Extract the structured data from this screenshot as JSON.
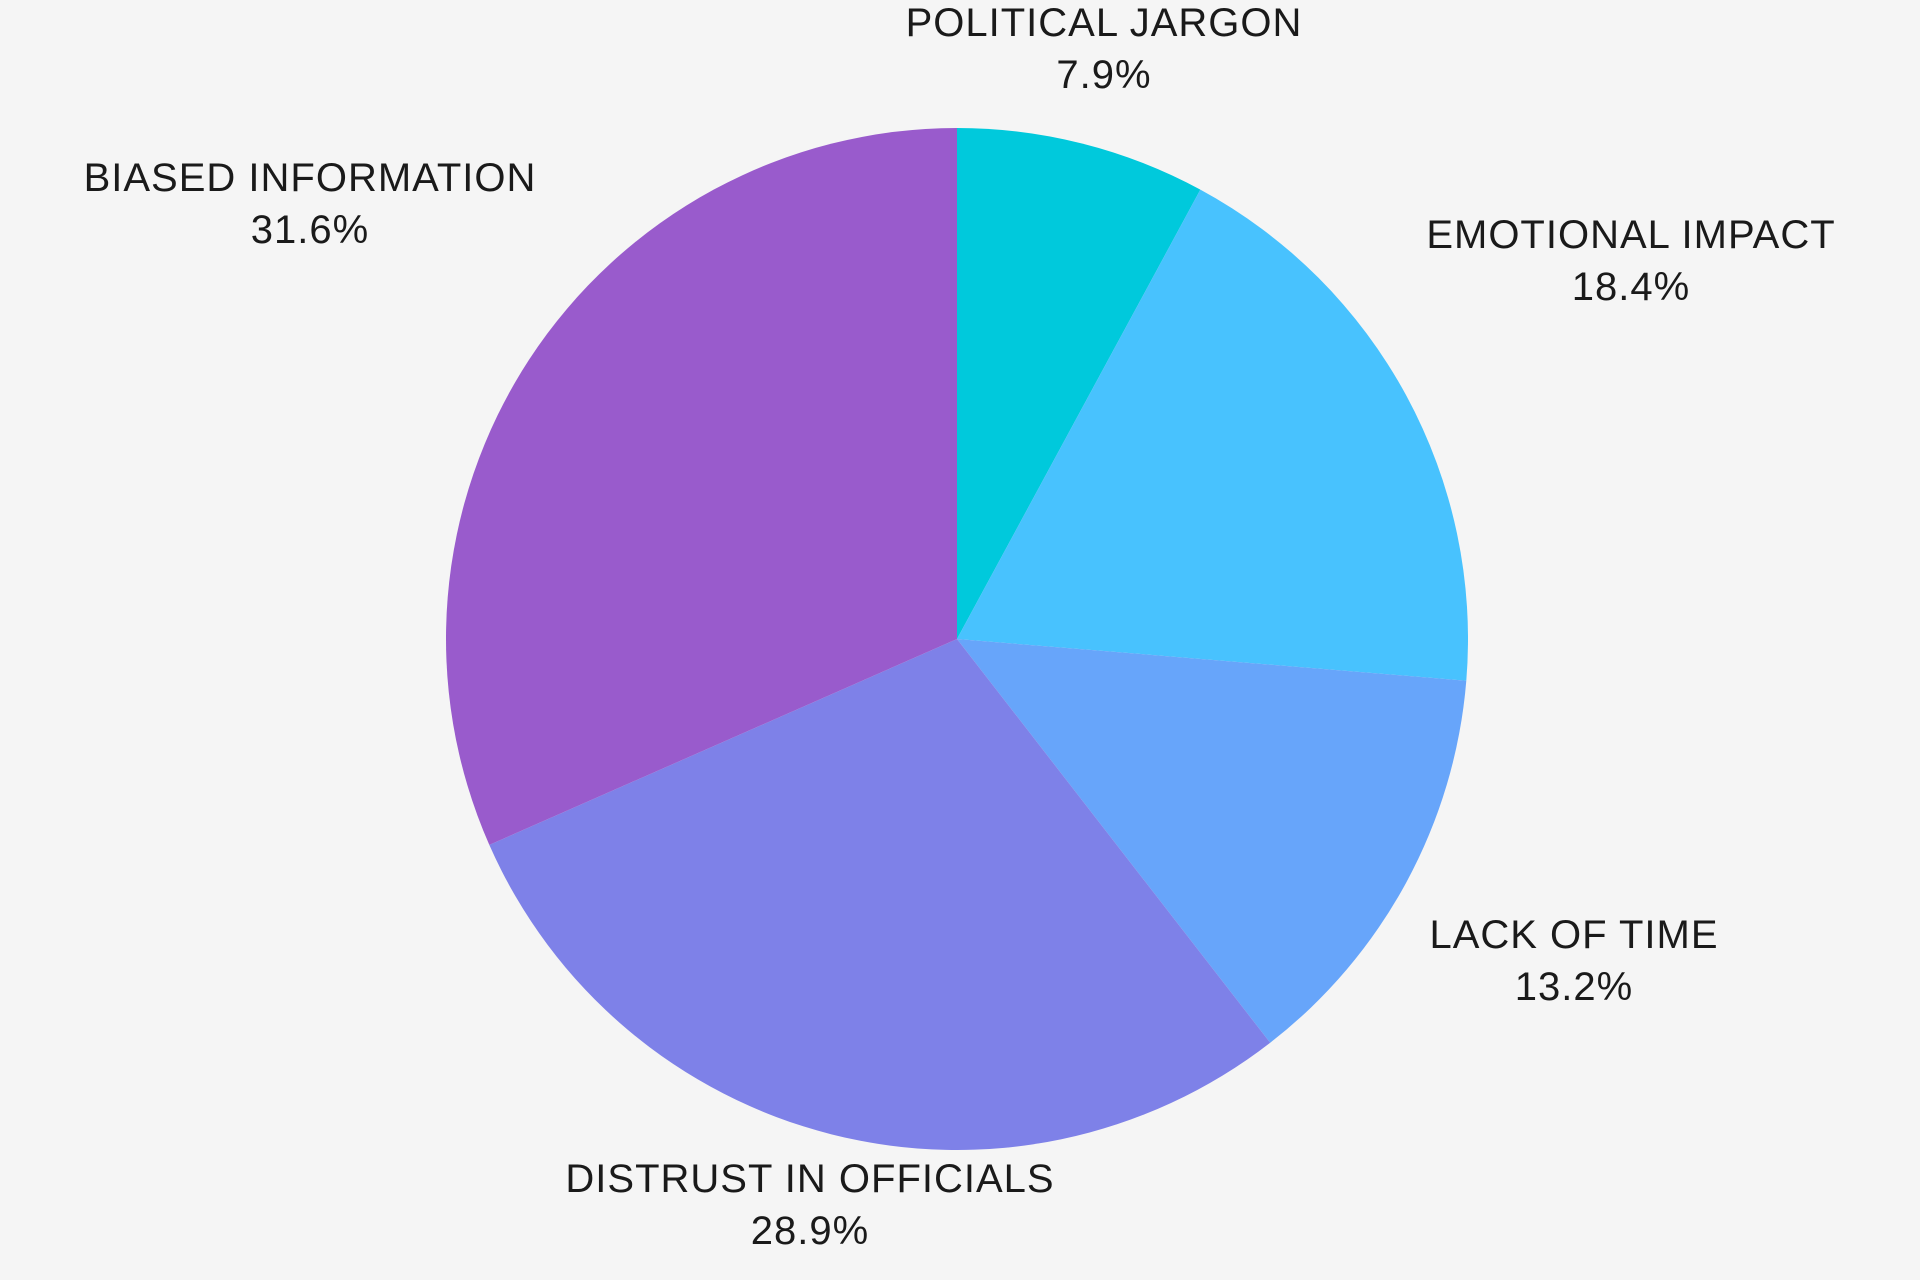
{
  "chart_data": {
    "type": "pie",
    "start_angle_deg": 90,
    "direction": "clockwise",
    "background": "#f5f5f5",
    "slices": [
      {
        "label": "POLITICAL JARGON",
        "value": 7.9,
        "display": "7.9%",
        "color": "#00c9dc"
      },
      {
        "label": "EMOTIONAL IMPACT",
        "value": 18.4,
        "display": "18.4%",
        "color": "#48c2fe"
      },
      {
        "label": "LACK OF TIME",
        "value": 13.2,
        "display": "13.2%",
        "color": "#67a5fa"
      },
      {
        "label": "DISTRUST IN OFFICIALS",
        "value": 28.9,
        "display": "28.9%",
        "color": "#7e81e8"
      },
      {
        "label": "BIASED INFORMATION",
        "value": 31.6,
        "display": "31.6%",
        "color": "#995bcc"
      }
    ]
  }
}
